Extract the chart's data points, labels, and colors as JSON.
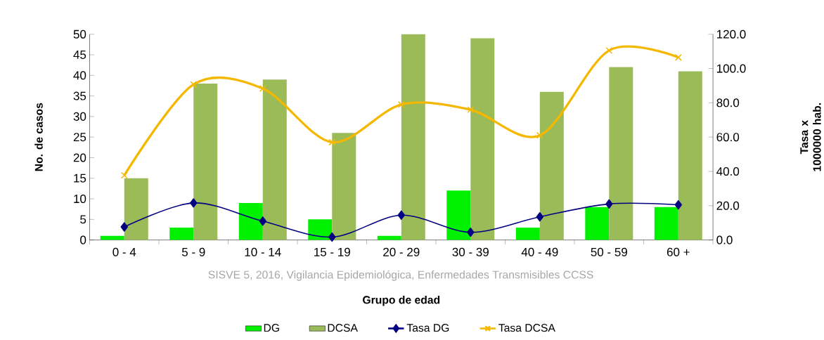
{
  "chart_data": {
    "type": "bar",
    "xlabel": "Grupo de edad",
    "ylabel": "No. de casos",
    "y2label": "Tasa x 1000000 hab.",
    "categories": [
      "0 - 4",
      "5 - 9",
      "10 - 14",
      "15 - 19",
      "20 - 29",
      "30 - 39",
      "40 - 49",
      "50 - 59",
      "60 +"
    ],
    "series": [
      {
        "name": "DG",
        "color": "#00f000",
        "values": [
          1,
          3,
          9,
          5,
          1,
          12,
          3,
          8,
          8
        ]
      },
      {
        "name": "DCSA",
        "color": "#9bbb59",
        "values": [
          15,
          38,
          39,
          26,
          50,
          49,
          36,
          42,
          41
        ]
      },
      {
        "name": "Tasa DG",
        "type": "line",
        "axis": "y2",
        "marker": "diamond",
        "color": "#000080",
        "values": [
          7.6,
          21.6,
          11,
          1.7,
          14.5,
          4.5,
          13.5,
          21,
          20.5
        ]
      },
      {
        "name": "Tasa DCSA",
        "type": "line",
        "axis": "y2",
        "marker": "cross",
        "color": "#f5b800",
        "values": [
          37.7,
          90.7,
          88.3,
          57,
          79,
          76,
          61,
          110.5,
          106.5
        ]
      }
    ],
    "ylim": [
      0,
      50
    ],
    "yticks": [
      0,
      5,
      10,
      15,
      20,
      25,
      30,
      35,
      40,
      45,
      50
    ],
    "y2lim": [
      0,
      120
    ],
    "y2ticks": [
      {
        "value": 0,
        "label": "0.0"
      },
      {
        "value": 20,
        "label": "20.0"
      },
      {
        "value": 40,
        "label": "40.0"
      },
      {
        "value": 60,
        "label": "60.0"
      },
      {
        "value": 80,
        "label": "80.0"
      },
      {
        "value": 100,
        "label": "100.0"
      },
      {
        "value": 120,
        "label": "120.0"
      }
    ],
    "legend": "bottom",
    "annotations": [
      "SISVE 5, 2016, Vigilancia Epidemiológica, Enfermedades Transmisibles CCSS"
    ]
  }
}
